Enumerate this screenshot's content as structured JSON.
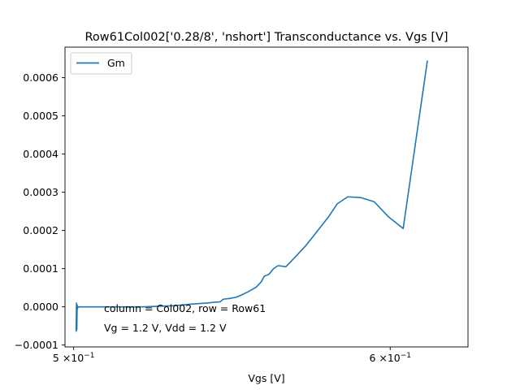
{
  "chart_data": {
    "type": "line",
    "title": "Row61Col002['0.28/8', 'nshort'] Transconductance vs. Vgs [V]",
    "xlabel": "Vgs [V]",
    "ylabel": "",
    "xscale": "log",
    "xlim": [
      0.4975,
      0.6275
    ],
    "ylim": [
      -0.000105,
      0.00068
    ],
    "x_ticks": [
      {
        "value": 0.5,
        "base": "5",
        "mid": "×10",
        "exp": "−1"
      },
      {
        "value": 0.6,
        "base": "6",
        "mid": "×10",
        "exp": "−1"
      }
    ],
    "y_ticks": [
      {
        "value": -0.0001,
        "label": "−0.0001"
      },
      {
        "value": 0.0,
        "label": "0.0000"
      },
      {
        "value": 0.0001,
        "label": "0.0001"
      },
      {
        "value": 0.0002,
        "label": "0.0002"
      },
      {
        "value": 0.0003,
        "label": "0.0003"
      },
      {
        "value": 0.0004,
        "label": "0.0004"
      },
      {
        "value": 0.0005,
        "label": "0.0005"
      },
      {
        "value": 0.0006,
        "label": "0.0006"
      }
    ],
    "grid": false,
    "legend_position": "top-left",
    "series": [
      {
        "name": "Gm",
        "color": "#1f77b4",
        "x": [
          0.5007,
          0.5008,
          0.5009,
          0.501,
          0.5011,
          0.5012,
          0.5015,
          0.502,
          0.505,
          0.51,
          0.52,
          0.53,
          0.535,
          0.54,
          0.542,
          0.544,
          0.545,
          0.547,
          0.549,
          0.551,
          0.553,
          0.5555,
          0.557,
          0.558,
          0.5595,
          0.561,
          0.5625,
          0.565,
          0.568,
          0.5715,
          0.575,
          0.579,
          0.582,
          0.5855,
          0.59,
          0.5945,
          0.5995,
          0.6045,
          0.613
        ],
        "y": [
          -6.5e-05,
          1e-05,
          -6e-05,
          5e-06,
          -5e-06,
          0.0,
          0.0,
          0.0,
          0.0,
          0.0,
          0.0,
          3e-06,
          7e-06,
          1e-05,
          1.2e-05,
          1.3e-05,
          2e-05,
          2.2e-05,
          2.5e-05,
          3.2e-05,
          4e-05,
          5.2e-05,
          6.5e-05,
          8e-05,
          8.5e-05,
          0.0001,
          0.000108,
          0.000105,
          0.00013,
          0.00016,
          0.000195,
          0.000235,
          0.00027,
          0.000288,
          0.000286,
          0.000275,
          0.000235,
          0.000205,
          0.000645
        ]
      }
    ],
    "annotations": [
      "column = Col002, row = Row61",
      "Vg = 1.2 V, Vdd = 1.2 V"
    ]
  }
}
